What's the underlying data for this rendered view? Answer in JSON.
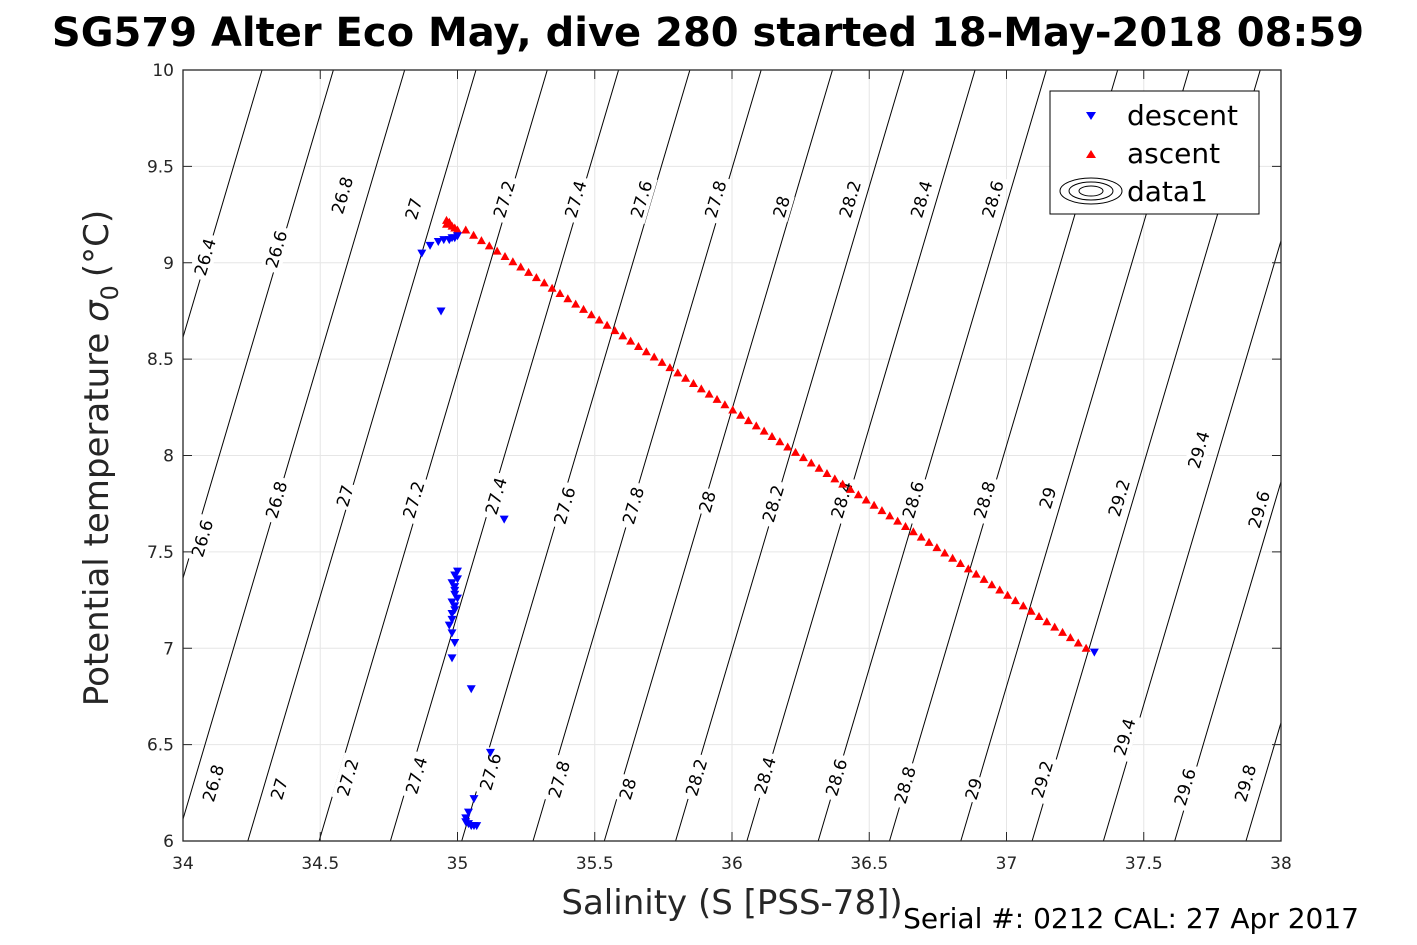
{
  "title": "SG579 Alter Eco May, dive 280 started 18-May-2018 08:59",
  "footer": "Serial #: 0212  CAL: 27 Apr 2017",
  "chart_data": {
    "type": "scatter",
    "xlabel": "Salinity (S [PSS-78])",
    "ylabel": "Potential temperature",
    "ylabel_symbol": "σ",
    "ylabel_subscript": "0",
    "ylabel_unit": "(°C)",
    "xlim": [
      34,
      38
    ],
    "ylim": [
      6,
      10
    ],
    "xticks": [
      "34",
      "34.5",
      "35",
      "35.5",
      "36",
      "36.5",
      "37",
      "37.5",
      "38"
    ],
    "yticks": [
      "6",
      "6.5",
      "7",
      "7.5",
      "8",
      "8.5",
      "9",
      "9.5",
      "10"
    ],
    "grid": true,
    "legend_position": "top-right",
    "legend": [
      "descent",
      "ascent",
      "data1"
    ],
    "colors": {
      "descent": "#0000ff",
      "ascent": "#ff0000",
      "contour": "#000000",
      "grid": "#e6e6e6",
      "axis": "#262626"
    },
    "contours": {
      "levels": [
        26.4,
        26.6,
        26.8,
        27.0,
        27.2,
        27.4,
        27.6,
        27.8,
        28.0,
        28.2,
        28.4,
        28.6,
        28.8,
        29.0,
        29.2,
        29.4,
        29.6,
        29.8
      ],
      "labels": [
        {
          "text": "26.4",
          "s": 34.08,
          "t": 9.03
        },
        {
          "text": "26.6",
          "s": 34.34,
          "t": 9.07
        },
        {
          "text": "26.8",
          "s": 34.58,
          "t": 9.35
        },
        {
          "text": "27",
          "s": 34.84,
          "t": 9.28
        },
        {
          "text": "27.2",
          "s": 35.17,
          "t": 9.33
        },
        {
          "text": "27.4",
          "s": 35.43,
          "t": 9.33
        },
        {
          "text": "27.6",
          "s": 35.67,
          "t": 9.33
        },
        {
          "text": "27.8",
          "s": 35.94,
          "t": 9.33
        },
        {
          "text": "28",
          "s": 36.18,
          "t": 9.29
        },
        {
          "text": "28.2",
          "s": 36.43,
          "t": 9.33
        },
        {
          "text": "28.4",
          "s": 36.69,
          "t": 9.33
        },
        {
          "text": "28.6",
          "s": 36.95,
          "t": 9.33
        },
        {
          "text": "26.6",
          "s": 34.07,
          "t": 7.57
        },
        {
          "text": "26.8",
          "s": 34.34,
          "t": 7.77
        },
        {
          "text": "27",
          "s": 34.59,
          "t": 7.79
        },
        {
          "text": "27.2",
          "s": 34.84,
          "t": 7.77
        },
        {
          "text": "27.4",
          "s": 35.14,
          "t": 7.79
        },
        {
          "text": "27.6",
          "s": 35.39,
          "t": 7.74
        },
        {
          "text": "27.8",
          "s": 35.64,
          "t": 7.74
        },
        {
          "text": "28",
          "s": 35.91,
          "t": 7.76
        },
        {
          "text": "28.2",
          "s": 36.15,
          "t": 7.75
        },
        {
          "text": "28.4",
          "s": 36.4,
          "t": 7.77
        },
        {
          "text": "28.6",
          "s": 36.66,
          "t": 7.77
        },
        {
          "text": "28.8",
          "s": 36.92,
          "t": 7.77
        },
        {
          "text": "29",
          "s": 37.15,
          "t": 7.78
        },
        {
          "text": "29.2",
          "s": 37.41,
          "t": 7.78
        },
        {
          "text": "29.4",
          "s": 37.7,
          "t": 8.03
        },
        {
          "text": "29.6",
          "s": 37.92,
          "t": 7.72
        },
        {
          "text": "29.4",
          "s": 37.43,
          "t": 6.54
        },
        {
          "text": "29.6",
          "s": 37.65,
          "t": 6.28
        },
        {
          "text": "29.8",
          "s": 37.87,
          "t": 6.3
        },
        {
          "text": "26.8",
          "s": 34.11,
          "t": 6.3
        },
        {
          "text": "27",
          "s": 34.35,
          "t": 6.27
        },
        {
          "text": "27.2",
          "s": 34.6,
          "t": 6.33
        },
        {
          "text": "27.4",
          "s": 34.85,
          "t": 6.34
        },
        {
          "text": "27.6",
          "s": 35.12,
          "t": 6.36
        },
        {
          "text": "27.8",
          "s": 35.37,
          "t": 6.32
        },
        {
          "text": "28",
          "s": 35.62,
          "t": 6.27
        },
        {
          "text": "28.2",
          "s": 35.87,
          "t": 6.33
        },
        {
          "text": "28.4",
          "s": 36.12,
          "t": 6.34
        },
        {
          "text": "28.6",
          "s": 36.38,
          "t": 6.33
        },
        {
          "text": "28.8",
          "s": 36.63,
          "t": 6.29
        },
        {
          "text": "29",
          "s": 36.88,
          "t": 6.27
        },
        {
          "text": "29.2",
          "s": 37.13,
          "t": 6.32
        }
      ]
    },
    "series": [
      {
        "name": "descent",
        "marker": "triangle-down",
        "points": [
          [
            34.87,
            9.05
          ],
          [
            34.9,
            9.09
          ],
          [
            34.93,
            9.11
          ],
          [
            34.95,
            9.12
          ],
          [
            34.97,
            9.12
          ],
          [
            34.98,
            9.13
          ],
          [
            34.99,
            9.13
          ],
          [
            35.0,
            9.14
          ],
          [
            34.94,
            8.75
          ],
          [
            35.17,
            7.67
          ],
          [
            35.0,
            7.4
          ],
          [
            34.99,
            7.38
          ],
          [
            35.0,
            7.36
          ],
          [
            34.98,
            7.34
          ],
          [
            34.99,
            7.32
          ],
          [
            34.99,
            7.3
          ],
          [
            34.99,
            7.28
          ],
          [
            35.0,
            7.26
          ],
          [
            34.98,
            7.24
          ],
          [
            34.99,
            7.22
          ],
          [
            34.99,
            7.2
          ],
          [
            34.98,
            7.18
          ],
          [
            34.98,
            7.15
          ],
          [
            34.97,
            7.12
          ],
          [
            34.98,
            7.08
          ],
          [
            34.99,
            7.03
          ],
          [
            34.98,
            6.95
          ],
          [
            35.05,
            6.79
          ],
          [
            35.12,
            6.46
          ],
          [
            35.06,
            6.22
          ],
          [
            35.04,
            6.15
          ],
          [
            35.03,
            6.12
          ],
          [
            35.03,
            6.1
          ],
          [
            35.04,
            6.09
          ],
          [
            35.05,
            6.08
          ],
          [
            35.06,
            6.08
          ],
          [
            35.07,
            6.08
          ],
          [
            37.32,
            6.98
          ]
        ]
      },
      {
        "name": "ascent",
        "marker": "triangle-up",
        "from": [
          37.29,
          7.0
        ],
        "to": [
          35.03,
          9.17
        ],
        "count": 80,
        "extra_points": [
          [
            34.96,
            9.22
          ],
          [
            34.97,
            9.21
          ],
          [
            34.98,
            9.19
          ],
          [
            34.96,
            9.2
          ],
          [
            34.99,
            9.18
          ],
          [
            35.0,
            9.17
          ]
        ]
      }
    ]
  }
}
